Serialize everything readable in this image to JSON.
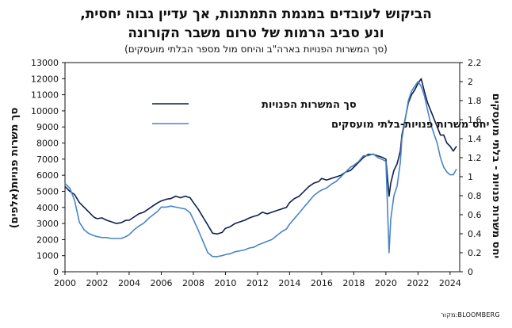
{
  "header": {
    "title_line1": "הביקוש לעובדים במגמת התמתנות, אך עדיין גבוה יחסית,",
    "title_line2": "ונע סביב הרמות של טרום משבר הקורונה",
    "subtitle": "(סך המשרות הפנויות בארה\"ב והיחס מול מספר הבלתי מועסקים)"
  },
  "source": "מקור:BLOOMBERG",
  "colors": {
    "job_openings": "#0d1f4f",
    "ratio": "#4a84c7",
    "axis": "#111111"
  },
  "chart_data": {
    "type": "line",
    "title": "הביקוש לעובדים במגמת התמתנות, אך עדיין גבוה יחסית, ונע סביב הרמות של טרום משבר הקורונה",
    "subtitle": "(סך המשרות הפנויות בארה\"ב והיחס מול מספר הבלתי מועסקים)",
    "xlim": [
      2000,
      2024.6
    ],
    "x_ticks": [
      "2000",
      "2002",
      "2004",
      "2006",
      "2008",
      "2010",
      "2012",
      "2014",
      "2016",
      "2018",
      "2020",
      "2022",
      "2024"
    ],
    "y_left": {
      "label": "סך משרות פנויות(אלפים)",
      "lim": [
        0,
        13000
      ],
      "ticks": [
        "0",
        "1000",
        "2000",
        "3000",
        "4000",
        "5000",
        "6000",
        "7000",
        "8000",
        "9000",
        "10000",
        "11000",
        "12000",
        "13000"
      ]
    },
    "y_right": {
      "label": "יחס משרות פנויות - בלתי מועסקים",
      "lim": [
        0,
        2.2
      ],
      "ticks": [
        "0",
        "0.2",
        "0.4",
        "0.6",
        "0.8",
        "1",
        "1.2",
        "1.4",
        "1.6",
        "1.8",
        "2",
        "2.2"
      ]
    },
    "legend_position": "upper-left",
    "series": [
      {
        "name": "סך המשרות הפנויות",
        "axis": "left",
        "x": [
          2000.0,
          2000.3,
          2000.6,
          2000.9,
          2001.2,
          2001.5,
          2001.8,
          2002.0,
          2002.3,
          2002.6,
          2002.9,
          2003.2,
          2003.5,
          2003.8,
          2004.0,
          2004.3,
          2004.6,
          2004.9,
          2005.2,
          2005.5,
          2005.8,
          2006.0,
          2006.3,
          2006.6,
          2006.9,
          2007.2,
          2007.5,
          2007.8,
          2008.0,
          2008.3,
          2008.6,
          2008.9,
          2009.2,
          2009.5,
          2009.8,
          2010.0,
          2010.3,
          2010.6,
          2010.9,
          2011.2,
          2011.5,
          2011.8,
          2012.0,
          2012.3,
          2012.6,
          2012.9,
          2013.2,
          2013.5,
          2013.8,
          2014.0,
          2014.3,
          2014.6,
          2014.9,
          2015.2,
          2015.5,
          2015.8,
          2016.0,
          2016.3,
          2016.6,
          2016.9,
          2017.2,
          2017.5,
          2017.8,
          2018.0,
          2018.3,
          2018.6,
          2018.9,
          2019.2,
          2019.5,
          2019.8,
          2020.0,
          2020.2,
          2020.3,
          2020.5,
          2020.7,
          2020.9,
          2021.0,
          2021.2,
          2021.4,
          2021.6,
          2021.8,
          2022.0,
          2022.2,
          2022.4,
          2022.6,
          2022.8,
          2023.0,
          2023.2,
          2023.4,
          2023.6,
          2023.8,
          2024.0,
          2024.2,
          2024.4
        ],
        "values": [
          5300,
          5000,
          4800,
          4300,
          4000,
          3700,
          3400,
          3300,
          3350,
          3200,
          3100,
          3000,
          3050,
          3200,
          3200,
          3400,
          3600,
          3700,
          3900,
          4100,
          4300,
          4400,
          4500,
          4550,
          4700,
          4600,
          4700,
          4600,
          4300,
          3900,
          3400,
          2900,
          2400,
          2350,
          2450,
          2700,
          2800,
          3000,
          3100,
          3200,
          3350,
          3450,
          3500,
          3700,
          3600,
          3700,
          3800,
          3900,
          4000,
          4300,
          4550,
          4700,
          5000,
          5300,
          5500,
          5600,
          5800,
          5700,
          5800,
          5900,
          6000,
          6200,
          6300,
          6500,
          6800,
          7100,
          7300,
          7300,
          7200,
          7100,
          7000,
          4700,
          5500,
          6300,
          6700,
          7500,
          8500,
          9500,
          10500,
          11000,
          11300,
          11700,
          12000,
          11200,
          10500,
          10000,
          9500,
          9000,
          8500,
          8500,
          8000,
          7800,
          7500,
          7800
        ]
      },
      {
        "name": "יחס משרות פנויות-בלתי מועסקים",
        "axis": "right",
        "x": [
          2000.0,
          2000.3,
          2000.6,
          2000.9,
          2001.2,
          2001.5,
          2001.8,
          2002.0,
          2002.3,
          2002.6,
          2002.9,
          2003.2,
          2003.5,
          2003.8,
          2004.0,
          2004.3,
          2004.6,
          2004.9,
          2005.2,
          2005.5,
          2005.8,
          2006.0,
          2006.3,
          2006.6,
          2006.9,
          2007.2,
          2007.5,
          2007.8,
          2008.0,
          2008.3,
          2008.6,
          2008.9,
          2009.2,
          2009.5,
          2009.8,
          2010.0,
          2010.3,
          2010.6,
          2010.9,
          2011.2,
          2011.5,
          2011.8,
          2012.0,
          2012.3,
          2012.6,
          2012.9,
          2013.2,
          2013.5,
          2013.8,
          2014.0,
          2014.3,
          2014.6,
          2014.9,
          2015.2,
          2015.5,
          2015.8,
          2016.0,
          2016.3,
          2016.6,
          2016.9,
          2017.2,
          2017.5,
          2017.8,
          2018.0,
          2018.3,
          2018.6,
          2018.9,
          2019.2,
          2019.5,
          2019.8,
          2020.0,
          2020.2,
          2020.3,
          2020.5,
          2020.7,
          2020.9,
          2021.0,
          2021.2,
          2021.4,
          2021.6,
          2021.8,
          2022.0,
          2022.2,
          2022.4,
          2022.6,
          2022.8,
          2023.0,
          2023.2,
          2023.4,
          2023.6,
          2023.8,
          2024.0,
          2024.2,
          2024.4
        ],
        "values": [
          0.93,
          0.88,
          0.75,
          0.52,
          0.44,
          0.4,
          0.38,
          0.37,
          0.36,
          0.36,
          0.35,
          0.35,
          0.35,
          0.37,
          0.39,
          0.44,
          0.48,
          0.51,
          0.56,
          0.6,
          0.64,
          0.68,
          0.68,
          0.69,
          0.68,
          0.67,
          0.66,
          0.62,
          0.55,
          0.44,
          0.32,
          0.2,
          0.16,
          0.16,
          0.17,
          0.18,
          0.19,
          0.21,
          0.22,
          0.23,
          0.25,
          0.26,
          0.28,
          0.3,
          0.32,
          0.34,
          0.38,
          0.42,
          0.45,
          0.5,
          0.56,
          0.62,
          0.68,
          0.74,
          0.8,
          0.84,
          0.86,
          0.88,
          0.92,
          0.95,
          1.0,
          1.05,
          1.1,
          1.12,
          1.16,
          1.22,
          1.22,
          1.24,
          1.2,
          1.18,
          1.16,
          0.2,
          0.55,
          0.8,
          0.9,
          1.15,
          1.4,
          1.6,
          1.8,
          1.9,
          1.95,
          2.0,
          1.95,
          1.85,
          1.7,
          1.55,
          1.45,
          1.35,
          1.2,
          1.1,
          1.05,
          1.02,
          1.02,
          1.08
        ]
      }
    ]
  }
}
